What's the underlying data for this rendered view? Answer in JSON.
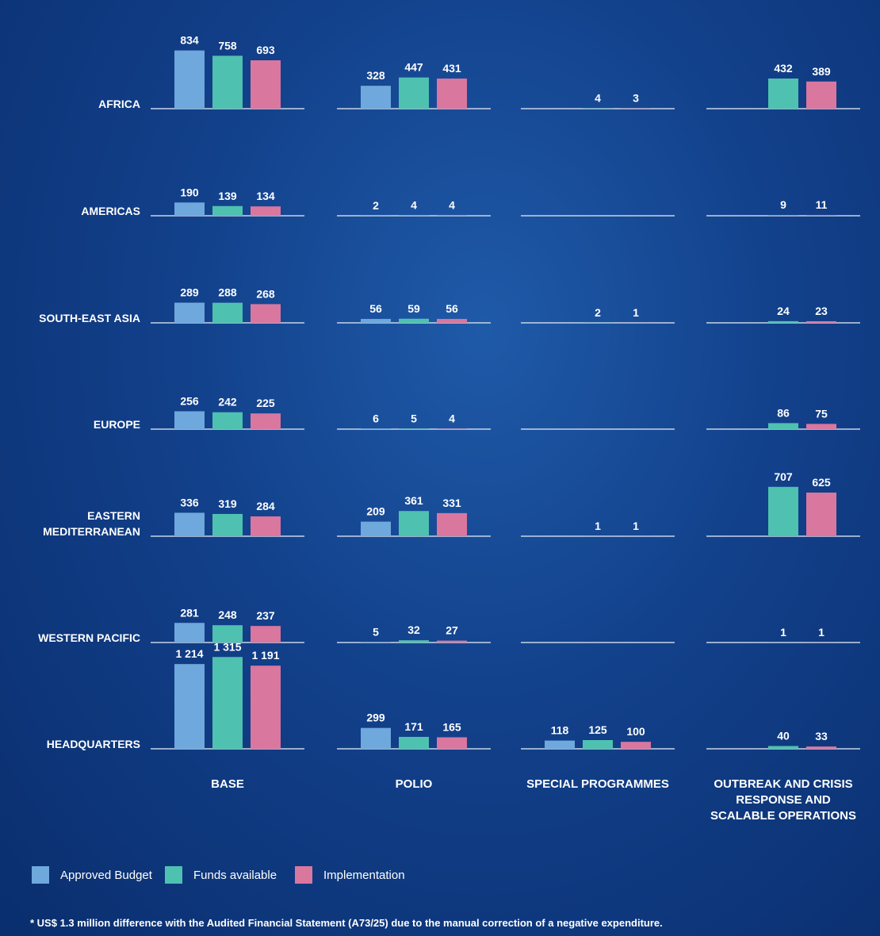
{
  "chart_data": {
    "type": "bar",
    "categories": [
      "AFRICA",
      "AMERICAS",
      "SOUTH-EAST ASIA",
      "EUROPE",
      "EASTERN MEDITERRANEAN",
      "WESTERN PACIFIC",
      "HEADQUARTERS"
    ],
    "series": [
      {
        "name": "Approved Budget",
        "color": "#6fa8dc"
      },
      {
        "name": "Funds available",
        "color": "#4fc1b0"
      },
      {
        "name": "Implementation",
        "color": "#d9779f"
      }
    ],
    "panels": [
      {
        "title": "BASE",
        "series": [
          {
            "values": [
              834,
              190,
              289,
              256,
              336,
              281,
              1214
            ],
            "value_labels": [
              null,
              null,
              null,
              null,
              null,
              null,
              "1 214"
            ]
          },
          {
            "values": [
              758,
              139,
              288,
              242,
              319,
              248,
              1315
            ],
            "value_labels": [
              null,
              null,
              null,
              null,
              null,
              null,
              "1 315"
            ]
          },
          {
            "values": [
              693,
              134,
              268,
              225,
              284,
              237,
              1191
            ],
            "value_labels": [
              null,
              null,
              null,
              null,
              null,
              null,
              "1 191"
            ]
          }
        ]
      },
      {
        "title": "POLIO",
        "series": [
          {
            "values": [
              328,
              2,
              56,
              6,
              209,
              5,
              299
            ]
          },
          {
            "values": [
              447,
              4,
              59,
              5,
              361,
              32,
              171
            ]
          },
          {
            "values": [
              431,
              4,
              56,
              4,
              331,
              27,
              165
            ]
          }
        ]
      },
      {
        "title": "SPECIAL PROGRAMMES",
        "series": [
          {
            "values": [
              null,
              null,
              null,
              null,
              null,
              null,
              118
            ]
          },
          {
            "values": [
              4,
              null,
              2,
              null,
              1,
              null,
              125
            ]
          },
          {
            "values": [
              3,
              null,
              1,
              null,
              1,
              null,
              100
            ]
          }
        ]
      },
      {
        "title": "OUTBREAK AND CRISIS RESPONSE AND SCALABLE OPERATIONS",
        "series": [
          {
            "values": [
              null,
              null,
              null,
              null,
              null,
              null,
              null
            ]
          },
          {
            "values": [
              432,
              9,
              24,
              86,
              707,
              1,
              40
            ]
          },
          {
            "values": [
              389,
              11,
              23,
              75,
              625,
              1,
              33
            ]
          }
        ]
      }
    ],
    "footnote": "* US$ 1.3 million difference with the Audited Financial Statement (A73/25) due to the manual correction of a negative expenditure."
  }
}
